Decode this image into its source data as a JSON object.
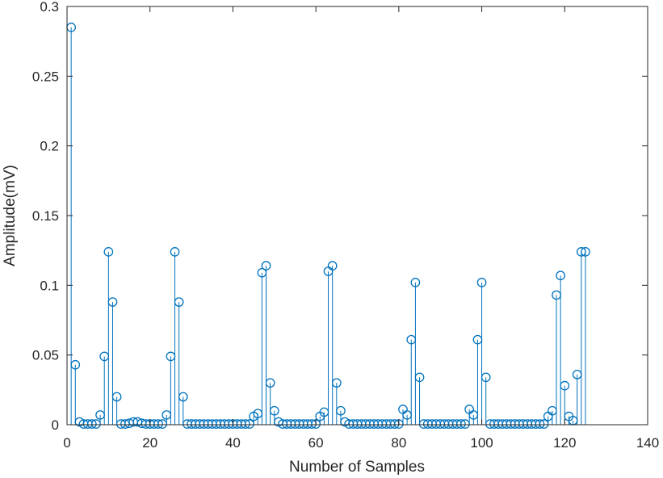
{
  "chart_data": {
    "type": "stem",
    "xlabel": "Number of Samples",
    "ylabel": "Amplitude(mV)",
    "xlim": [
      0,
      140
    ],
    "ylim": [
      0,
      0.3
    ],
    "xticks": [
      0,
      20,
      40,
      60,
      80,
      100,
      120,
      140
    ],
    "xtick_labels": [
      "0",
      "20",
      "40",
      "60",
      "80",
      "100",
      "120",
      "140"
    ],
    "yticks": [
      0,
      0.05,
      0.1,
      0.15,
      0.2,
      0.25,
      0.3
    ],
    "ytick_labels": [
      "0",
      "0.05",
      "0.1",
      "0.15",
      "0.2",
      "0.25",
      "0.3"
    ],
    "color": "#0072BD",
    "axis_color": "#262626",
    "x": [
      1,
      2,
      3,
      4,
      5,
      6,
      7,
      8,
      9,
      10,
      11,
      12,
      13,
      14,
      15,
      16,
      17,
      18,
      19,
      20,
      21,
      22,
      23,
      24,
      25,
      26,
      27,
      28,
      29,
      30,
      31,
      32,
      33,
      34,
      35,
      36,
      37,
      38,
      39,
      40,
      41,
      42,
      43,
      44,
      45,
      46,
      47,
      48,
      49,
      50,
      51,
      52,
      53,
      54,
      55,
      56,
      57,
      58,
      59,
      60,
      61,
      62,
      63,
      64,
      65,
      66,
      67,
      68,
      69,
      70,
      71,
      72,
      73,
      74,
      75,
      76,
      77,
      78,
      79,
      80,
      81,
      82,
      83,
      84,
      85,
      86,
      87,
      88,
      89,
      90,
      91,
      92,
      93,
      94,
      95,
      96,
      97,
      98,
      99,
      100,
      101,
      102,
      103,
      104,
      105,
      106,
      107,
      108,
      109,
      110,
      111,
      112,
      113,
      114,
      115,
      116,
      117,
      118,
      119,
      120,
      121,
      122,
      123,
      124,
      125
    ],
    "values": [
      0.285,
      0.043,
      0.002,
      0.0005,
      0.0005,
      0.0005,
      0.0005,
      0.007,
      0.049,
      0.124,
      0.088,
      0.02,
      0.0005,
      0.0005,
      0.001,
      0.002,
      0.002,
      0.001,
      0.0005,
      0.0005,
      0.0005,
      0.0005,
      0.0005,
      0.007,
      0.049,
      0.124,
      0.088,
      0.02,
      0.0005,
      0.0005,
      0.0005,
      0.0005,
      0.0005,
      0.0005,
      0.0005,
      0.0005,
      0.0005,
      0.0005,
      0.0005,
      0.0005,
      0.0005,
      0.0005,
      0.0005,
      0.0005,
      0.006,
      0.008,
      0.109,
      0.114,
      0.03,
      0.01,
      0.002,
      0.0005,
      0.0005,
      0.0005,
      0.0005,
      0.0005,
      0.0005,
      0.0005,
      0.0005,
      0.0005,
      0.006,
      0.009,
      0.11,
      0.114,
      0.03,
      0.01,
      0.002,
      0.0005,
      0.0005,
      0.0005,
      0.0005,
      0.0005,
      0.0005,
      0.0005,
      0.0005,
      0.0005,
      0.0005,
      0.0005,
      0.0005,
      0.0005,
      0.011,
      0.007,
      0.061,
      0.102,
      0.034,
      0.0005,
      0.0005,
      0.0005,
      0.0005,
      0.0005,
      0.0005,
      0.0005,
      0.0005,
      0.0005,
      0.0005,
      0.0005,
      0.011,
      0.007,
      0.061,
      0.102,
      0.034,
      0.0005,
      0.0005,
      0.0005,
      0.0005,
      0.0005,
      0.0005,
      0.0005,
      0.0005,
      0.0005,
      0.0005,
      0.0005,
      0.0005,
      0.0005,
      0.0005,
      0.006,
      0.01,
      0.093,
      0.107,
      0.028,
      0.006,
      0.003,
      0.036,
      0.124,
      0.124
    ]
  }
}
